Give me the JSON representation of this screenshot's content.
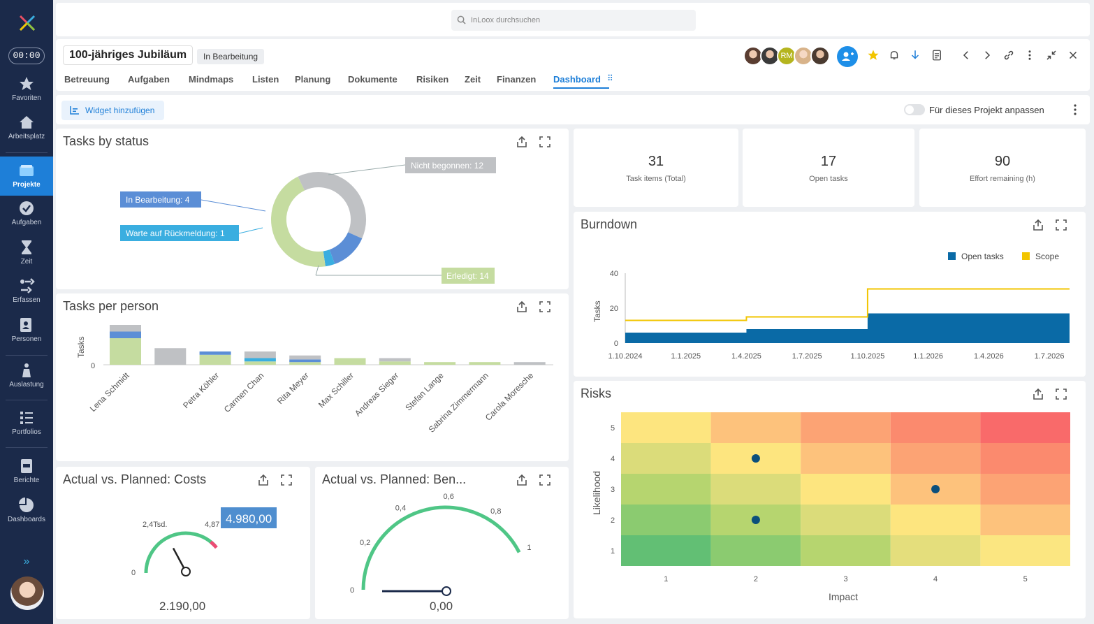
{
  "sidebar": {
    "timer": "00:00",
    "items": [
      {
        "label": "Favoriten",
        "icon": "star-icon"
      },
      {
        "label": "Arbeitsplatz",
        "icon": "home-icon"
      },
      {
        "label": "Projekte",
        "icon": "folder-icon",
        "active": true
      },
      {
        "label": "Aufgaben",
        "icon": "check-circle-icon"
      },
      {
        "label": "Zeit",
        "icon": "hourglass-icon"
      },
      {
        "label": "Erfassen",
        "icon": "capture-icon"
      },
      {
        "label": "Personen",
        "icon": "contacts-icon"
      },
      {
        "label": "Auslastung",
        "icon": "workload-icon"
      },
      {
        "label": "Portfolios",
        "icon": "portfolio-icon"
      },
      {
        "label": "Berichte",
        "icon": "report-icon"
      },
      {
        "label": "Dashboards",
        "icon": "pie-icon"
      }
    ],
    "expand": "»"
  },
  "search": {
    "placeholder": "InLoox durchsuchen"
  },
  "project": {
    "title": "100-jähriges Jubiläum",
    "status": "In Bearbeitung",
    "avatar_initials": "RM",
    "tabs": [
      "Betreuung",
      "Aufgaben",
      "Mindmaps",
      "Listen",
      "Planung",
      "Dokumente",
      "Risiken",
      "Zeit",
      "Finanzen",
      "Dashboard"
    ],
    "active_tab": "Dashboard"
  },
  "toolbar": {
    "add_widget": "Widget hinzufügen",
    "customize": "Für dieses Projekt anpassen"
  },
  "widgets": {
    "tasks_by_status": {
      "title": "Tasks by status",
      "labels": [
        "Nicht begonnen: 12",
        "In Bearbeitung: 4",
        "Warte auf Rückmeldung: 1",
        "Erledigt: 14"
      ]
    },
    "kpis": [
      {
        "value": "31",
        "label": "Task items (Total)"
      },
      {
        "value": "17",
        "label": "Open tasks"
      },
      {
        "value": "90",
        "label": "Effort remaining (h)"
      }
    ],
    "tasks_per_person": {
      "title": "Tasks per person",
      "ylabel": "Tasks",
      "zero": "0"
    },
    "burndown": {
      "title": "Burndown",
      "ylabel": "Tasks"
    },
    "risks": {
      "title": "Risks",
      "xlabel": "Impact",
      "ylabel": "Likelihood"
    },
    "costs": {
      "title": "Actual vs. Planned: Costs",
      "value": "2.190,00",
      "tooltip": "4.980,00",
      "tick_labels": [
        "0",
        "2,4Tsd.",
        "4,87"
      ]
    },
    "benefits": {
      "title": "Actual vs. Planned: Ben...",
      "value": "0,00",
      "tick_labels": [
        "0",
        "0,2",
        "0,4",
        "0,6",
        "0,8",
        "1"
      ]
    }
  },
  "chart_data": [
    {
      "type": "pie",
      "labels": [
        "Nicht begonnen",
        "In Bearbeitung",
        "Warte auf Rückmeldung",
        "Erledigt"
      ],
      "values": [
        12,
        4,
        1,
        14
      ],
      "colors": [
        "#bfc1c4",
        "#5b8ed6",
        "#3aaee0",
        "#c5dca0"
      ]
    },
    {
      "type": "bar",
      "categories": [
        "Lena Schmidt",
        "",
        "Petra Köhler",
        "Carmen Chan",
        "Rita Meyer",
        "Max Schiller",
        "Andreas Sieger",
        "Stefan Lange",
        "Sabrina Zimmermann",
        "Carola Moresche"
      ],
      "stacks": [
        {
          "done": 4,
          "wait": 0,
          "inprog": 1,
          "notstarted": 1
        },
        {
          "done": 0,
          "wait": 0,
          "inprog": 0,
          "notstarted": 2.5
        },
        {
          "done": 1.5,
          "wait": 0,
          "inprog": 0.5,
          "notstarted": 0
        },
        {
          "done": 0.5,
          "wait": 0.5,
          "inprog": 0,
          "notstarted": 1
        },
        {
          "done": 0.4,
          "wait": 0,
          "inprog": 0.4,
          "notstarted": 0.6
        },
        {
          "done": 1,
          "wait": 0,
          "inprog": 0,
          "notstarted": 0
        },
        {
          "done": 0.5,
          "wait": 0,
          "inprog": 0,
          "notstarted": 0.5
        },
        {
          "done": 0.4,
          "wait": 0,
          "inprog": 0,
          "notstarted": 0
        },
        {
          "done": 0.4,
          "wait": 0,
          "inprog": 0,
          "notstarted": 0
        },
        {
          "done": 0,
          "wait": 0,
          "inprog": 0,
          "notstarted": 0.4
        }
      ],
      "colors": {
        "done": "#c5dca0",
        "wait": "#3aaee0",
        "inprog": "#5b8ed6",
        "notstarted": "#bfc1c4"
      }
    },
    {
      "type": "line",
      "x_ticks": [
        "1.10.2024",
        "1.1.2025",
        "1.4.2025",
        "1.7.2025",
        "1.10.2025",
        "1.1.2026",
        "1.4.2026",
        "1.7.2026"
      ],
      "y_ticks": [
        "0",
        "20",
        "40"
      ],
      "ylim": [
        0,
        40
      ],
      "series": [
        {
          "name": "Open tasks",
          "kind": "area",
          "color": "#0a6aa6",
          "steps": [
            {
              "x": "1.10.2024",
              "y": 6
            },
            {
              "x": "1.4.2025",
              "y": 8
            },
            {
              "x": "1.10.2025",
              "y": 17
            },
            {
              "x": "1.8.2026",
              "y": 17
            }
          ]
        },
        {
          "name": "Scope",
          "kind": "line",
          "color": "#f2c500",
          "steps": [
            {
              "x": "1.10.2024",
              "y": 13
            },
            {
              "x": "1.4.2025",
              "y": 15
            },
            {
              "x": "1.10.2025",
              "y": 31
            },
            {
              "x": "1.8.2026",
              "y": 31
            }
          ]
        }
      ]
    },
    {
      "type": "heatmap",
      "x": [
        "1",
        "2",
        "3",
        "4",
        "5"
      ],
      "y": [
        "1",
        "2",
        "3",
        "4",
        "5"
      ],
      "points": [
        {
          "impact": 2,
          "likelihood": 4
        },
        {
          "impact": 4,
          "likelihood": 3
        },
        {
          "impact": 2,
          "likelihood": 2
        }
      ]
    },
    {
      "type": "gauge",
      "value": 2190,
      "max": 4980,
      "target": 4870
    },
    {
      "type": "gauge",
      "value": 0,
      "min": 0,
      "max": 1
    }
  ]
}
